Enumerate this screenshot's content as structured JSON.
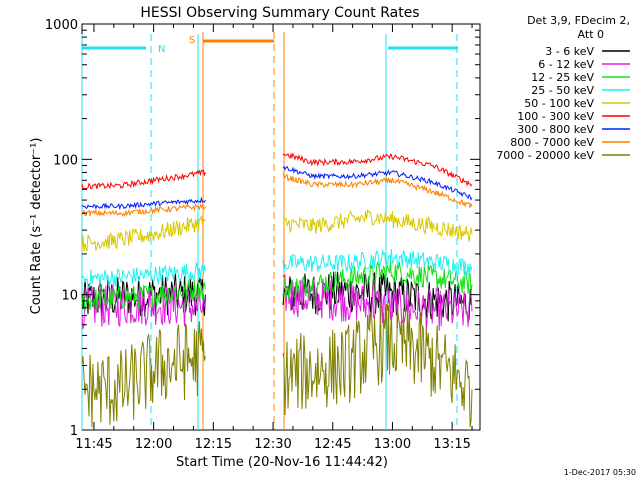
{
  "chart_data": {
    "type": "line",
    "title": "HESSI Observing Summary Count Rates",
    "xlabel": "Start Time (20-Nov-16 11:44:42)",
    "ylabel": "Count Rate (s⁻¹ detector⁻¹)",
    "y_scale": "log",
    "ylim": [
      1,
      1000
    ],
    "xlim_minutes_since_midnight": [
      702,
      802
    ],
    "x_ticks": [
      {
        "label": "11:45",
        "value": 705
      },
      {
        "label": "12:00",
        "value": 720
      },
      {
        "label": "12:15",
        "value": 735
      },
      {
        "label": "12:30",
        "value": 750
      },
      {
        "label": "12:45",
        "value": 765
      },
      {
        "label": "13:00",
        "value": 780
      },
      {
        "label": "13:15",
        "value": 795
      }
    ],
    "y_ticks": [
      {
        "label": "1",
        "value": 1
      },
      {
        "label": "10",
        "value": 10
      },
      {
        "label": "100",
        "value": 100
      },
      {
        "label": "1000",
        "value": 1000
      }
    ],
    "legend_header": [
      "Det 3,9, FDecim 2,",
      "Att 0"
    ],
    "legend_position": "top-right",
    "series": [
      {
        "name": "3 - 6 keV",
        "color": "#000000",
        "segments": [
          [
            [
              702,
              9
            ],
            [
              710,
              9.5
            ],
            [
              720,
              10
            ],
            [
              733,
              10
            ]
          ],
          [
            [
              752.5,
              10
            ],
            [
              768,
              10.5
            ],
            [
              780,
              10
            ],
            [
              792,
              9
            ],
            [
              800,
              8.5
            ]
          ]
        ]
      },
      {
        "name": "6 - 12 keV",
        "color": "#e020e0",
        "segments": [
          [
            [
              702,
              8
            ],
            [
              720,
              8.5
            ],
            [
              733,
              8
            ]
          ],
          [
            [
              752.5,
              10
            ],
            [
              768,
              9
            ],
            [
              780,
              8
            ],
            [
              800,
              7.5
            ]
          ]
        ]
      },
      {
        "name": "12 - 25 keV",
        "color": "#10e010",
        "segments": [
          [
            [
              702,
              9
            ],
            [
              720,
              10
            ],
            [
              733,
              11
            ]
          ],
          [
            [
              752.5,
              11
            ],
            [
              768,
              13
            ],
            [
              780,
              15
            ],
            [
              800,
              12
            ]
          ]
        ]
      },
      {
        "name": "25 - 50 keV",
        "color": "#20f0f0",
        "segments": [
          [
            [
              702,
              13
            ],
            [
              720,
              14
            ],
            [
              733,
              15
            ]
          ],
          [
            [
              752.5,
              17
            ],
            [
              768,
              17
            ],
            [
              780,
              19
            ],
            [
              800,
              16
            ]
          ]
        ]
      },
      {
        "name": "50 - 100 keV",
        "color": "#d8c800",
        "segments": [
          [
            [
              702,
              24
            ],
            [
              710,
              25
            ],
            [
              720,
              28
            ],
            [
              733,
              35
            ]
          ],
          [
            [
              752.5,
              34
            ],
            [
              760,
              32
            ],
            [
              775,
              38
            ],
            [
              790,
              32
            ],
            [
              800,
              28
            ]
          ]
        ]
      },
      {
        "name": "100 - 300 keV",
        "color": "#ff0000",
        "segments": [
          [
            [
              702,
              63
            ],
            [
              712,
              64
            ],
            [
              720,
              70
            ],
            [
              733,
              80
            ]
          ],
          [
            [
              752.5,
              110
            ],
            [
              760,
              95
            ],
            [
              770,
              96
            ],
            [
              780,
              105
            ],
            [
              790,
              90
            ],
            [
              800,
              65
            ]
          ]
        ]
      },
      {
        "name": "300 - 800 keV",
        "color": "#0020ff",
        "segments": [
          [
            [
              702,
              45
            ],
            [
              712,
              45
            ],
            [
              720,
              47
            ],
            [
              733,
              50
            ]
          ],
          [
            [
              752.5,
              88
            ],
            [
              760,
              75
            ],
            [
              770,
              75
            ],
            [
              780,
              80
            ],
            [
              790,
              68
            ],
            [
              800,
              52
            ]
          ]
        ]
      },
      {
        "name": "800 - 7000 keV",
        "color": "#ff8000",
        "segments": [
          [
            [
              702,
              40
            ],
            [
              712,
              40
            ],
            [
              720,
              42
            ],
            [
              733,
              45
            ]
          ],
          [
            [
              752.5,
              75
            ],
            [
              760,
              65
            ],
            [
              770,
              65
            ],
            [
              780,
              70
            ],
            [
              790,
              58
            ],
            [
              800,
              45
            ]
          ]
        ]
      },
      {
        "name": "7000 - 20000 keV",
        "color": "#808000",
        "segments": [
          [
            [
              702,
              2
            ],
            [
              712,
              2
            ],
            [
              722,
              3
            ],
            [
              733,
              3.5
            ]
          ],
          [
            [
              752.5,
              2.5
            ],
            [
              768,
              3
            ],
            [
              778,
              4.5
            ],
            [
              785,
              4
            ],
            [
              792,
              3
            ],
            [
              800,
              2
            ]
          ]
        ]
      }
    ],
    "annotations": [
      {
        "text": "N",
        "color": "#20e0f0"
      },
      {
        "text": "S",
        "color": "#ff8000"
      }
    ]
  },
  "footer": {
    "timestamp": "1-Dec-2017 05:30"
  }
}
